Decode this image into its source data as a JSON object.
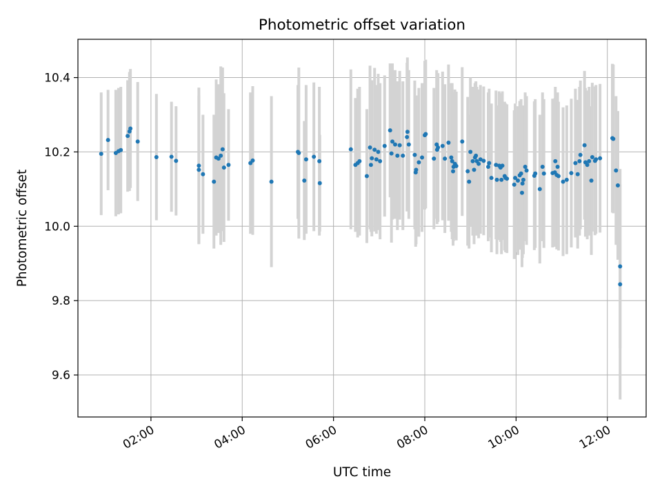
{
  "chart_data": {
    "type": "scatter",
    "title": "Photometric offset variation",
    "xlabel": "UTC time",
    "ylabel": "Photometric offset",
    "x_unit": "hours UTC",
    "xlim": [
      0.4,
      12.85
    ],
    "ylim": [
      9.487,
      10.503
    ],
    "x_ticks": [
      2,
      4,
      6,
      8,
      10,
      12
    ],
    "x_tick_labels": [
      "02:00",
      "04:00",
      "06:00",
      "08:00",
      "10:00",
      "12:00"
    ],
    "y_ticks": [
      9.6,
      9.8,
      10.0,
      10.2,
      10.4
    ],
    "y_tick_labels": [
      "9.6",
      "9.8",
      "10.0",
      "10.2",
      "10.4"
    ],
    "grid": true,
    "colors": {
      "points": "#1f77b4",
      "errorbars": "#d3d3d3",
      "grid": "#b0b0b0"
    },
    "series": [
      {
        "name": "offset",
        "points": [
          {
            "x": 0.91,
            "y": 10.195,
            "err": 0.165
          },
          {
            "x": 1.06,
            "y": 10.232,
            "err": 0.135
          },
          {
            "x": 1.23,
            "y": 10.197,
            "err": 0.17
          },
          {
            "x": 1.29,
            "y": 10.202,
            "err": 0.17
          },
          {
            "x": 1.34,
            "y": 10.205,
            "err": 0.17
          },
          {
            "x": 1.49,
            "y": 10.243,
            "err": 0.15
          },
          {
            "x": 1.53,
            "y": 10.255,
            "err": 0.16
          },
          {
            "x": 1.55,
            "y": 10.263,
            "err": 0.16
          },
          {
            "x": 1.71,
            "y": 10.228,
            "err": 0.16
          },
          {
            "x": 2.12,
            "y": 10.186,
            "err": 0.17
          },
          {
            "x": 2.45,
            "y": 10.187,
            "err": 0.148
          },
          {
            "x": 2.55,
            "y": 10.176,
            "err": 0.147
          },
          {
            "x": 3.05,
            "y": 10.163,
            "err": 0.21
          },
          {
            "x": 3.05,
            "y": 10.152,
            "err": 0.2
          },
          {
            "x": 3.14,
            "y": 10.14,
            "err": 0.16
          },
          {
            "x": 3.38,
            "y": 10.12,
            "err": 0.18
          },
          {
            "x": 3.43,
            "y": 10.185,
            "err": 0.21
          },
          {
            "x": 3.48,
            "y": 10.182,
            "err": 0.2
          },
          {
            "x": 3.53,
            "y": 10.19,
            "err": 0.24
          },
          {
            "x": 3.57,
            "y": 10.207,
            "err": 0.22
          },
          {
            "x": 3.6,
            "y": 10.158,
            "err": 0.2
          },
          {
            "x": 3.7,
            "y": 10.165,
            "err": 0.15
          },
          {
            "x": 4.18,
            "y": 10.17,
            "err": 0.19
          },
          {
            "x": 4.23,
            "y": 10.177,
            "err": 0.2
          },
          {
            "x": 4.64,
            "y": 10.12,
            "err": 0.23
          },
          {
            "x": 5.22,
            "y": 10.2,
            "err": 0.18
          },
          {
            "x": 5.24,
            "y": 10.197,
            "err": 0.23
          },
          {
            "x": 5.36,
            "y": 10.123,
            "err": 0.16
          },
          {
            "x": 5.4,
            "y": 10.18,
            "err": 0.2
          },
          {
            "x": 5.57,
            "y": 10.187,
            "err": 0.2
          },
          {
            "x": 5.69,
            "y": 10.175,
            "err": 0.2
          },
          {
            "x": 5.7,
            "y": 10.116,
            "err": 0.13
          },
          {
            "x": 6.38,
            "y": 10.207,
            "err": 0.215
          },
          {
            "x": 6.48,
            "y": 10.165,
            "err": 0.18
          },
          {
            "x": 6.53,
            "y": 10.17,
            "err": 0.2
          },
          {
            "x": 6.57,
            "y": 10.175,
            "err": 0.2
          },
          {
            "x": 6.73,
            "y": 10.135,
            "err": 0.18
          },
          {
            "x": 6.8,
            "y": 10.212,
            "err": 0.22
          },
          {
            "x": 6.82,
            "y": 10.165,
            "err": 0.18
          },
          {
            "x": 6.84,
            "y": 10.183,
            "err": 0.21
          },
          {
            "x": 6.9,
            "y": 10.206,
            "err": 0.22
          },
          {
            "x": 6.94,
            "y": 10.18,
            "err": 0.2
          },
          {
            "x": 6.98,
            "y": 10.2,
            "err": 0.21
          },
          {
            "x": 7.02,
            "y": 10.175,
            "err": 0.21
          },
          {
            "x": 7.12,
            "y": 10.216,
            "err": 0.19
          },
          {
            "x": 7.24,
            "y": 10.258,
            "err": 0.18
          },
          {
            "x": 7.27,
            "y": 10.196,
            "err": 0.24
          },
          {
            "x": 7.29,
            "y": 10.228,
            "err": 0.21
          },
          {
            "x": 7.35,
            "y": 10.22,
            "err": 0.2
          },
          {
            "x": 7.4,
            "y": 10.19,
            "err": 0.2
          },
          {
            "x": 7.45,
            "y": 10.218,
            "err": 0.2
          },
          {
            "x": 7.52,
            "y": 10.19,
            "err": 0.2
          },
          {
            "x": 7.61,
            "y": 10.24,
            "err": 0.2
          },
          {
            "x": 7.62,
            "y": 10.254,
            "err": 0.2
          },
          {
            "x": 7.65,
            "y": 10.22,
            "err": 0.2
          },
          {
            "x": 7.78,
            "y": 10.192,
            "err": 0.2
          },
          {
            "x": 7.8,
            "y": 10.145,
            "err": 0.2
          },
          {
            "x": 7.81,
            "y": 10.152,
            "err": 0.2
          },
          {
            "x": 7.87,
            "y": 10.172,
            "err": 0.2
          },
          {
            "x": 7.94,
            "y": 10.185,
            "err": 0.2
          },
          {
            "x": 8.0,
            "y": 10.245,
            "err": 0.2
          },
          {
            "x": 8.02,
            "y": 10.248,
            "err": 0.2
          },
          {
            "x": 8.2,
            "y": 10.182,
            "err": 0.19
          },
          {
            "x": 8.26,
            "y": 10.22,
            "err": 0.2
          },
          {
            "x": 8.27,
            "y": 10.206,
            "err": 0.2
          },
          {
            "x": 8.29,
            "y": 10.212,
            "err": 0.2
          },
          {
            "x": 8.39,
            "y": 10.216,
            "err": 0.2
          },
          {
            "x": 8.44,
            "y": 10.182,
            "err": 0.2
          },
          {
            "x": 8.52,
            "y": 10.225,
            "err": 0.21
          },
          {
            "x": 8.58,
            "y": 10.185,
            "err": 0.2
          },
          {
            "x": 8.6,
            "y": 10.175,
            "err": 0.21
          },
          {
            "x": 8.62,
            "y": 10.148,
            "err": 0.2
          },
          {
            "x": 8.63,
            "y": 10.16,
            "err": 0.2
          },
          {
            "x": 8.66,
            "y": 10.168,
            "err": 0.2
          },
          {
            "x": 8.69,
            "y": 10.162,
            "err": 0.2
          },
          {
            "x": 8.82,
            "y": 10.228,
            "err": 0.2
          },
          {
            "x": 8.94,
            "y": 10.148,
            "err": 0.2
          },
          {
            "x": 8.97,
            "y": 10.12,
            "err": 0.18
          },
          {
            "x": 9.0,
            "y": 10.2,
            "err": 0.2
          },
          {
            "x": 9.05,
            "y": 10.175,
            "err": 0.2
          },
          {
            "x": 9.08,
            "y": 10.152,
            "err": 0.2
          },
          {
            "x": 9.1,
            "y": 10.185,
            "err": 0.2
          },
          {
            "x": 9.12,
            "y": 10.19,
            "err": 0.2
          },
          {
            "x": 9.14,
            "y": 10.175,
            "err": 0.2
          },
          {
            "x": 9.18,
            "y": 10.168,
            "err": 0.2
          },
          {
            "x": 9.22,
            "y": 10.18,
            "err": 0.2
          },
          {
            "x": 9.29,
            "y": 10.176,
            "err": 0.2
          },
          {
            "x": 9.39,
            "y": 10.16,
            "err": 0.2
          },
          {
            "x": 9.41,
            "y": 10.17,
            "err": 0.2
          },
          {
            "x": 9.46,
            "y": 10.13,
            "err": 0.2
          },
          {
            "x": 9.56,
            "y": 10.165,
            "err": 0.2
          },
          {
            "x": 9.58,
            "y": 10.125,
            "err": 0.2
          },
          {
            "x": 9.63,
            "y": 10.163,
            "err": 0.2
          },
          {
            "x": 9.66,
            "y": 10.158,
            "err": 0.2
          },
          {
            "x": 9.68,
            "y": 10.125,
            "err": 0.2
          },
          {
            "x": 9.7,
            "y": 10.163,
            "err": 0.2
          },
          {
            "x": 9.75,
            "y": 10.135,
            "err": 0.2
          },
          {
            "x": 9.77,
            "y": 10.13,
            "err": 0.2
          },
          {
            "x": 9.8,
            "y": 10.128,
            "err": 0.2
          },
          {
            "x": 9.96,
            "y": 10.112,
            "err": 0.2
          },
          {
            "x": 9.98,
            "y": 10.13,
            "err": 0.2
          },
          {
            "x": 10.04,
            "y": 10.123,
            "err": 0.2
          },
          {
            "x": 10.08,
            "y": 10.137,
            "err": 0.2
          },
          {
            "x": 10.11,
            "y": 10.142,
            "err": 0.2
          },
          {
            "x": 10.13,
            "y": 10.09,
            "err": 0.2
          },
          {
            "x": 10.14,
            "y": 10.115,
            "err": 0.2
          },
          {
            "x": 10.16,
            "y": 10.125,
            "err": 0.2
          },
          {
            "x": 10.2,
            "y": 10.16,
            "err": 0.2
          },
          {
            "x": 10.23,
            "y": 10.15,
            "err": 0.2
          },
          {
            "x": 10.4,
            "y": 10.136,
            "err": 0.2
          },
          {
            "x": 10.42,
            "y": 10.142,
            "err": 0.2
          },
          {
            "x": 10.52,
            "y": 10.1,
            "err": 0.2
          },
          {
            "x": 10.58,
            "y": 10.16,
            "err": 0.2
          },
          {
            "x": 10.61,
            "y": 10.142,
            "err": 0.2
          },
          {
            "x": 10.8,
            "y": 10.143,
            "err": 0.2
          },
          {
            "x": 10.85,
            "y": 10.145,
            "err": 0.2
          },
          {
            "x": 10.86,
            "y": 10.175,
            "err": 0.2
          },
          {
            "x": 10.89,
            "y": 10.138,
            "err": 0.2
          },
          {
            "x": 10.91,
            "y": 10.16,
            "err": 0.2
          },
          {
            "x": 10.93,
            "y": 10.135,
            "err": 0.2
          },
          {
            "x": 11.03,
            "y": 10.12,
            "err": 0.2
          },
          {
            "x": 11.11,
            "y": 10.125,
            "err": 0.2
          },
          {
            "x": 11.21,
            "y": 10.143,
            "err": 0.2
          },
          {
            "x": 11.3,
            "y": 10.17,
            "err": 0.2
          },
          {
            "x": 11.35,
            "y": 10.14,
            "err": 0.2
          },
          {
            "x": 11.39,
            "y": 10.175,
            "err": 0.2
          },
          {
            "x": 11.41,
            "y": 10.192,
            "err": 0.2
          },
          {
            "x": 11.5,
            "y": 10.218,
            "err": 0.2
          },
          {
            "x": 11.52,
            "y": 10.172,
            "err": 0.2
          },
          {
            "x": 11.56,
            "y": 10.165,
            "err": 0.2
          },
          {
            "x": 11.6,
            "y": 10.175,
            "err": 0.2
          },
          {
            "x": 11.65,
            "y": 10.123,
            "err": 0.2
          },
          {
            "x": 11.67,
            "y": 10.186,
            "err": 0.2
          },
          {
            "x": 11.73,
            "y": 10.176,
            "err": 0.2
          },
          {
            "x": 11.75,
            "y": 10.18,
            "err": 0.2
          },
          {
            "x": 11.84,
            "y": 10.183,
            "err": 0.2
          },
          {
            "x": 12.11,
            "y": 10.237,
            "err": 0.2
          },
          {
            "x": 12.13,
            "y": 10.235,
            "err": 0.2
          },
          {
            "x": 12.19,
            "y": 10.15,
            "err": 0.2
          },
          {
            "x": 12.23,
            "y": 10.11,
            "err": 0.2
          },
          {
            "x": 12.28,
            "y": 9.892,
            "err": 0.22
          },
          {
            "x": 12.28,
            "y": 9.844,
            "err": 0.31
          }
        ]
      }
    ]
  }
}
